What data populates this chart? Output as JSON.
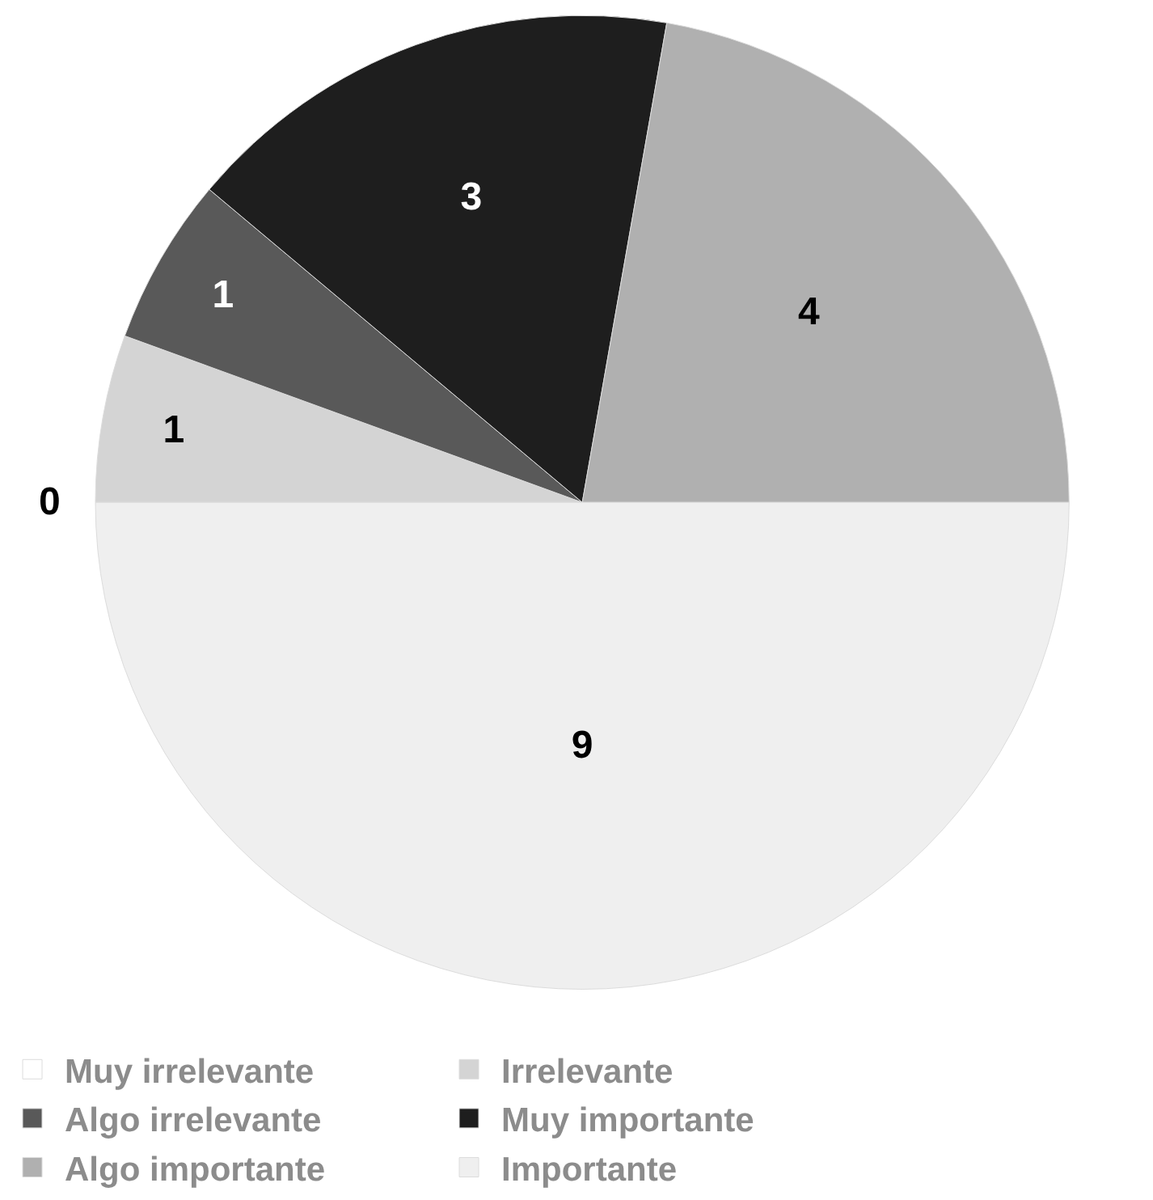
{
  "chart_data": {
    "type": "pie",
    "categories": [
      "Muy irrelevante",
      "Irrelevante",
      "Algo irrelevante",
      "Muy importante",
      "Algo importante",
      "Importante"
    ],
    "values": [
      0,
      1,
      1,
      3,
      4,
      9
    ],
    "colors": [
      "#ffffff",
      "#d4d4d4",
      "#595959",
      "#1e1e1e",
      "#b0b0b0",
      "#efefef"
    ],
    "value_labels": [
      "0",
      "1",
      "1",
      "3",
      "4",
      "9"
    ],
    "legend": "bottom"
  }
}
